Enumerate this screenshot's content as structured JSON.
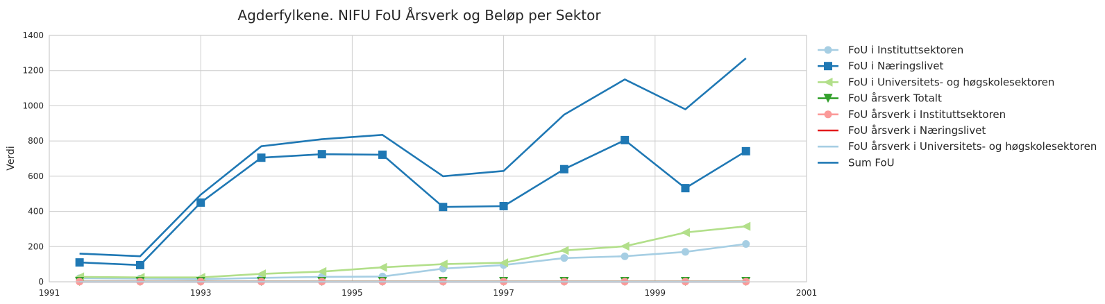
{
  "chart_data": {
    "type": "line",
    "title": "Agderfylkene. NIFU FoU Årsverk og Beløp per Sektor",
    "xlabel": "",
    "ylabel": "Verdi",
    "xlim": [
      1991,
      2001
    ],
    "ylim": [
      0,
      1400
    ],
    "x_ticks": [
      "1991",
      "1993",
      "1995",
      "1997",
      "1999",
      "2001"
    ],
    "y_ticks": [
      "0",
      "200",
      "400",
      "600",
      "800",
      "1000",
      "1200",
      "1400"
    ],
    "grid": true,
    "legend_position": "outside-right",
    "x": [
      1991.4,
      1992.2,
      1993.0,
      1993.8,
      1994.6,
      1995.4,
      1996.2,
      1997.0,
      1997.8,
      1998.6,
      1999.4,
      2000.2
    ],
    "series": [
      {
        "name": "FoU i Instituttsektoren",
        "color": "#a6cee3",
        "marker": "circle",
        "values": [
          20,
          18,
          15,
          22,
          28,
          30,
          75,
          95,
          135,
          145,
          170,
          215
        ]
      },
      {
        "name": "FoU i Næringslivet",
        "color": "#1f78b4",
        "marker": "square",
        "values": [
          110,
          95,
          450,
          705,
          725,
          722,
          425,
          430,
          640,
          805,
          532,
          742
        ]
      },
      {
        "name": "FoU i Universitets- og høgskolesektoren",
        "color": "#b2df8a",
        "marker": "triangle-left",
        "values": [
          28,
          25,
          25,
          45,
          58,
          82,
          100,
          108,
          178,
          202,
          280,
          315
        ]
      },
      {
        "name": "FoU årsverk Totalt",
        "color": "#33a02c",
        "marker": "triangle-down",
        "values": [
          2,
          2,
          2,
          2,
          2,
          2,
          2,
          2,
          2,
          2,
          2,
          2
        ]
      },
      {
        "name": "FoU årsverk i Instituttsektoren",
        "color": "#fb9a99",
        "marker": "circle",
        "values": [
          1,
          1,
          1,
          1,
          1,
          1,
          1,
          1,
          1,
          1,
          1,
          1
        ]
      },
      {
        "name": "FoU årsverk i Næringslivet",
        "color": "#e31a1c",
        "marker": "none",
        "values": [
          0,
          0,
          0,
          0,
          0,
          0,
          0,
          0,
          0,
          0,
          0,
          0
        ]
      },
      {
        "name": "FoU årsverk i Universitets- og høgskolesektoren",
        "color": "#a6cee3",
        "marker": "none",
        "values": [
          0,
          0,
          0,
          0,
          0,
          0,
          0,
          0,
          0,
          0,
          0,
          0
        ]
      },
      {
        "name": "Sum FoU",
        "color": "#1f78b4",
        "marker": "none",
        "values": [
          160,
          145,
          495,
          770,
          810,
          835,
          600,
          630,
          950,
          1150,
          980,
          1270
        ]
      }
    ]
  }
}
